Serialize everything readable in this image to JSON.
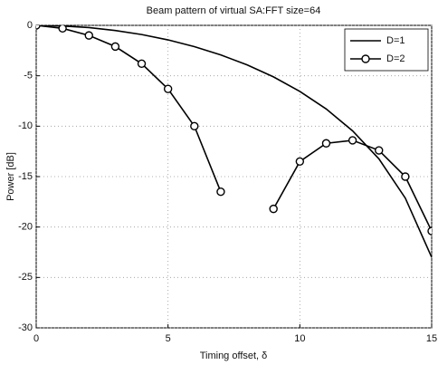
{
  "chart_data": {
    "type": "line",
    "title": "Beam pattern of virtual SA:FFT size=64",
    "x_label": "Timing offset, δ",
    "y_label": "Power [dB]",
    "x": [
      0,
      1,
      2,
      3,
      4,
      5,
      6,
      7,
      8,
      9,
      10,
      11,
      12,
      13,
      14,
      15
    ],
    "series": [
      {
        "name": "D=1",
        "color": "#000000",
        "marker": "none",
        "values": [
          0,
          -0.06,
          -0.22,
          -0.51,
          -0.91,
          -1.44,
          -2.11,
          -2.93,
          -3.92,
          -5.11,
          -6.55,
          -8.29,
          -10.46,
          -13.24,
          -17.13,
          -23
        ]
      },
      {
        "name": "D=2",
        "color": "#000000",
        "marker": "circle",
        "values": [
          0,
          -0.3,
          -1,
          -2.1,
          -3.8,
          -6.3,
          -10,
          -16.5,
          null,
          -18.2,
          -13.5,
          -11.7,
          -11.4,
          -12.4,
          -15,
          -20.4
        ]
      }
    ],
    "xlim": [
      0,
      15
    ],
    "xticks": [
      0,
      5,
      10,
      15
    ],
    "ylim": [
      -30,
      0
    ],
    "yticks": [
      0,
      -5,
      -10,
      -15,
      -20,
      -25,
      -30
    ],
    "grid": true,
    "legend": "upper right"
  }
}
